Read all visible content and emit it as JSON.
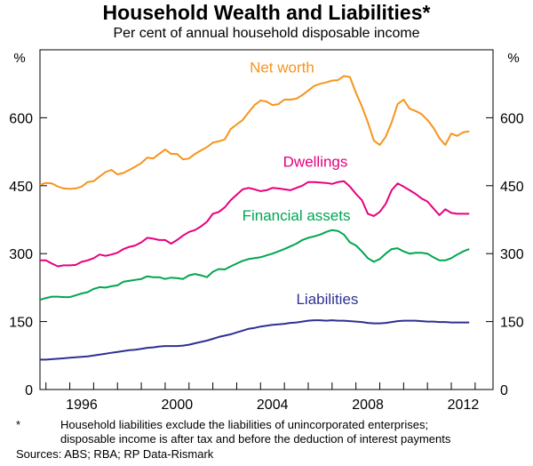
{
  "chart_data": {
    "type": "line",
    "title": "Household Wealth and Liabilities*",
    "subtitle": "Per cent of annual household disposable income",
    "y_unit_left": "%",
    "y_unit_right": "%",
    "ylim": [
      0,
      750
    ],
    "yticks": [
      "0",
      "150",
      "300",
      "450",
      "600"
    ],
    "yticks_right": [
      "0",
      "150",
      "300",
      "450",
      "600"
    ],
    "xlim": [
      1994.75,
      2013.75
    ],
    "xticks": [
      "1996",
      "2000",
      "2004",
      "2008",
      "2012"
    ],
    "grid": false,
    "series": [
      {
        "name": "Net worth",
        "color": "#f7941d",
        "label_pos": [
          1999.0,
          0
        ],
        "points": [
          [
            1994.75,
            452
          ],
          [
            1995.0,
            456
          ],
          [
            1995.25,
            455
          ],
          [
            1995.5,
            448
          ],
          [
            1995.75,
            444
          ],
          [
            1996.0,
            443
          ],
          [
            1996.25,
            444
          ],
          [
            1996.5,
            448
          ],
          [
            1996.75,
            458
          ],
          [
            1997.0,
            460
          ],
          [
            1997.25,
            470
          ],
          [
            1997.5,
            480
          ],
          [
            1997.75,
            485
          ],
          [
            1998.0,
            475
          ],
          [
            1998.25,
            478
          ],
          [
            1998.5,
            485
          ],
          [
            1998.75,
            492
          ],
          [
            1999.0,
            500
          ],
          [
            1999.25,
            512
          ],
          [
            1999.5,
            510
          ],
          [
            1999.75,
            520
          ],
          [
            2000.0,
            530
          ],
          [
            2000.25,
            520
          ],
          [
            2000.5,
            520
          ],
          [
            2000.75,
            508
          ],
          [
            2001.0,
            510
          ],
          [
            2001.25,
            520
          ],
          [
            2001.5,
            528
          ],
          [
            2001.75,
            535
          ],
          [
            2002.0,
            545
          ],
          [
            2002.25,
            548
          ],
          [
            2002.5,
            552
          ],
          [
            2002.75,
            575
          ],
          [
            2003.0,
            585
          ],
          [
            2003.25,
            595
          ],
          [
            2003.5,
            612
          ],
          [
            2003.75,
            628
          ],
          [
            2004.0,
            638
          ],
          [
            2004.25,
            636
          ],
          [
            2004.5,
            628
          ],
          [
            2004.75,
            630
          ],
          [
            2005.0,
            640
          ],
          [
            2005.25,
            640
          ],
          [
            2005.5,
            642
          ],
          [
            2005.75,
            650
          ],
          [
            2006.0,
            660
          ],
          [
            2006.25,
            670
          ],
          [
            2006.5,
            675
          ],
          [
            2006.75,
            678
          ],
          [
            2007.0,
            682
          ],
          [
            2007.25,
            683
          ],
          [
            2007.5,
            692
          ],
          [
            2007.75,
            690
          ],
          [
            2008.0,
            655
          ],
          [
            2008.25,
            625
          ],
          [
            2008.5,
            590
          ],
          [
            2008.75,
            550
          ],
          [
            2009.0,
            540
          ],
          [
            2009.25,
            558
          ],
          [
            2009.5,
            590
          ],
          [
            2009.75,
            630
          ],
          [
            2010.0,
            640
          ],
          [
            2010.25,
            620
          ],
          [
            2010.5,
            615
          ],
          [
            2010.75,
            608
          ],
          [
            2011.0,
            595
          ],
          [
            2011.25,
            578
          ],
          [
            2011.5,
            555
          ],
          [
            2011.75,
            540
          ],
          [
            2012.0,
            565
          ],
          [
            2012.25,
            560
          ],
          [
            2012.5,
            568
          ],
          [
            2012.75,
            570
          ]
        ]
      },
      {
        "name": "Dwellings",
        "color": "#e6007e",
        "points": [
          [
            1994.75,
            285
          ],
          [
            1995.0,
            285
          ],
          [
            1995.25,
            278
          ],
          [
            1995.5,
            272
          ],
          [
            1995.75,
            274
          ],
          [
            1996.0,
            274
          ],
          [
            1996.25,
            275
          ],
          [
            1996.5,
            282
          ],
          [
            1996.75,
            285
          ],
          [
            1997.0,
            290
          ],
          [
            1997.25,
            298
          ],
          [
            1997.5,
            295
          ],
          [
            1997.75,
            298
          ],
          [
            1998.0,
            302
          ],
          [
            1998.25,
            310
          ],
          [
            1998.5,
            315
          ],
          [
            1998.75,
            318
          ],
          [
            1999.0,
            325
          ],
          [
            1999.25,
            335
          ],
          [
            1999.5,
            333
          ],
          [
            1999.75,
            330
          ],
          [
            2000.0,
            330
          ],
          [
            2000.25,
            322
          ],
          [
            2000.5,
            330
          ],
          [
            2000.75,
            340
          ],
          [
            2001.0,
            348
          ],
          [
            2001.25,
            352
          ],
          [
            2001.5,
            360
          ],
          [
            2001.75,
            370
          ],
          [
            2002.0,
            388
          ],
          [
            2002.25,
            392
          ],
          [
            2002.5,
            402
          ],
          [
            2002.75,
            418
          ],
          [
            2003.0,
            430
          ],
          [
            2003.25,
            442
          ],
          [
            2003.5,
            445
          ],
          [
            2003.75,
            442
          ],
          [
            2004.0,
            438
          ],
          [
            2004.25,
            440
          ],
          [
            2004.5,
            445
          ],
          [
            2004.75,
            444
          ],
          [
            2005.0,
            442
          ],
          [
            2005.25,
            440
          ],
          [
            2005.5,
            445
          ],
          [
            2005.75,
            450
          ],
          [
            2006.0,
            458
          ],
          [
            2006.25,
            458
          ],
          [
            2006.5,
            457
          ],
          [
            2006.75,
            456
          ],
          [
            2007.0,
            454
          ],
          [
            2007.25,
            458
          ],
          [
            2007.5,
            460
          ],
          [
            2007.75,
            448
          ],
          [
            2008.0,
            432
          ],
          [
            2008.25,
            418
          ],
          [
            2008.5,
            388
          ],
          [
            2008.75,
            383
          ],
          [
            2009.0,
            392
          ],
          [
            2009.25,
            410
          ],
          [
            2009.5,
            440
          ],
          [
            2009.75,
            455
          ],
          [
            2010.0,
            448
          ],
          [
            2010.25,
            440
          ],
          [
            2010.5,
            432
          ],
          [
            2010.75,
            422
          ],
          [
            2011.0,
            415
          ],
          [
            2011.25,
            400
          ],
          [
            2011.5,
            385
          ],
          [
            2011.75,
            398
          ],
          [
            2012.0,
            390
          ],
          [
            2012.25,
            388
          ],
          [
            2012.5,
            388
          ],
          [
            2012.75,
            388
          ]
        ]
      },
      {
        "name": "Financial assets",
        "color": "#00a651",
        "points": [
          [
            1994.75,
            198
          ],
          [
            1995.0,
            202
          ],
          [
            1995.25,
            205
          ],
          [
            1995.5,
            205
          ],
          [
            1995.75,
            204
          ],
          [
            1996.0,
            204
          ],
          [
            1996.25,
            208
          ],
          [
            1996.5,
            212
          ],
          [
            1996.75,
            215
          ],
          [
            1997.0,
            222
          ],
          [
            1997.25,
            226
          ],
          [
            1997.5,
            225
          ],
          [
            1997.75,
            228
          ],
          [
            1998.0,
            230
          ],
          [
            1998.25,
            238
          ],
          [
            1998.5,
            240
          ],
          [
            1998.75,
            242
          ],
          [
            1999.0,
            244
          ],
          [
            1999.25,
            250
          ],
          [
            1999.5,
            248
          ],
          [
            1999.75,
            248
          ],
          [
            2000.0,
            244
          ],
          [
            2000.25,
            247
          ],
          [
            2000.5,
            246
          ],
          [
            2000.75,
            244
          ],
          [
            2001.0,
            252
          ],
          [
            2001.25,
            255
          ],
          [
            2001.5,
            252
          ],
          [
            2001.75,
            248
          ],
          [
            2002.0,
            260
          ],
          [
            2002.25,
            266
          ],
          [
            2002.5,
            265
          ],
          [
            2002.75,
            272
          ],
          [
            2003.0,
            278
          ],
          [
            2003.25,
            284
          ],
          [
            2003.5,
            288
          ],
          [
            2003.75,
            290
          ],
          [
            2004.0,
            292
          ],
          [
            2004.25,
            296
          ],
          [
            2004.5,
            300
          ],
          [
            2004.75,
            305
          ],
          [
            2005.0,
            310
          ],
          [
            2005.25,
            316
          ],
          [
            2005.5,
            322
          ],
          [
            2005.75,
            330
          ],
          [
            2006.0,
            335
          ],
          [
            2006.25,
            338
          ],
          [
            2006.5,
            342
          ],
          [
            2006.75,
            348
          ],
          [
            2007.0,
            352
          ],
          [
            2007.25,
            350
          ],
          [
            2007.5,
            342
          ],
          [
            2007.75,
            325
          ],
          [
            2008.0,
            318
          ],
          [
            2008.25,
            305
          ],
          [
            2008.5,
            290
          ],
          [
            2008.75,
            282
          ],
          [
            2009.0,
            288
          ],
          [
            2009.25,
            300
          ],
          [
            2009.5,
            310
          ],
          [
            2009.75,
            312
          ],
          [
            2010.0,
            305
          ],
          [
            2010.25,
            300
          ],
          [
            2010.5,
            302
          ],
          [
            2010.75,
            302
          ],
          [
            2011.0,
            300
          ],
          [
            2011.25,
            292
          ],
          [
            2011.5,
            285
          ],
          [
            2011.75,
            285
          ],
          [
            2012.0,
            290
          ],
          [
            2012.25,
            298
          ],
          [
            2012.5,
            305
          ],
          [
            2012.75,
            310
          ]
        ]
      },
      {
        "name": "Liabilities",
        "color": "#2e3192",
        "points": [
          [
            1994.75,
            66
          ],
          [
            1995.0,
            66
          ],
          [
            1995.25,
            67
          ],
          [
            1995.5,
            68
          ],
          [
            1995.75,
            69
          ],
          [
            1996.0,
            70
          ],
          [
            1996.25,
            71
          ],
          [
            1996.5,
            72
          ],
          [
            1996.75,
            73
          ],
          [
            1997.0,
            75
          ],
          [
            1997.25,
            77
          ],
          [
            1997.5,
            79
          ],
          [
            1997.75,
            81
          ],
          [
            1998.0,
            83
          ],
          [
            1998.25,
            85
          ],
          [
            1998.5,
            87
          ],
          [
            1998.75,
            88
          ],
          [
            1999.0,
            90
          ],
          [
            1999.25,
            92
          ],
          [
            1999.5,
            93
          ],
          [
            1999.75,
            95
          ],
          [
            2000.0,
            96
          ],
          [
            2000.25,
            96
          ],
          [
            2000.5,
            96
          ],
          [
            2000.75,
            97
          ],
          [
            2001.0,
            99
          ],
          [
            2001.25,
            102
          ],
          [
            2001.5,
            105
          ],
          [
            2001.75,
            108
          ],
          [
            2002.0,
            112
          ],
          [
            2002.25,
            116
          ],
          [
            2002.5,
            119
          ],
          [
            2002.75,
            122
          ],
          [
            2003.0,
            126
          ],
          [
            2003.25,
            130
          ],
          [
            2003.5,
            134
          ],
          [
            2003.75,
            136
          ],
          [
            2004.0,
            139
          ],
          [
            2004.25,
            141
          ],
          [
            2004.5,
            143
          ],
          [
            2004.75,
            144
          ],
          [
            2005.0,
            145
          ],
          [
            2005.25,
            147
          ],
          [
            2005.5,
            148
          ],
          [
            2005.75,
            150
          ],
          [
            2006.0,
            152
          ],
          [
            2006.25,
            153
          ],
          [
            2006.5,
            153
          ],
          [
            2006.75,
            152
          ],
          [
            2007.0,
            153
          ],
          [
            2007.25,
            152
          ],
          [
            2007.5,
            152
          ],
          [
            2007.75,
            151
          ],
          [
            2008.0,
            150
          ],
          [
            2008.25,
            149
          ],
          [
            2008.5,
            147
          ],
          [
            2008.75,
            146
          ],
          [
            2009.0,
            146
          ],
          [
            2009.25,
            147
          ],
          [
            2009.5,
            149
          ],
          [
            2009.75,
            151
          ],
          [
            2010.0,
            152
          ],
          [
            2010.25,
            152
          ],
          [
            2010.5,
            152
          ],
          [
            2010.75,
            151
          ],
          [
            2011.0,
            150
          ],
          [
            2011.25,
            150
          ],
          [
            2011.5,
            149
          ],
          [
            2011.75,
            149
          ],
          [
            2012.0,
            148
          ],
          [
            2012.25,
            148
          ],
          [
            2012.5,
            148
          ],
          [
            2012.75,
            148
          ]
        ]
      }
    ]
  },
  "footnotes": {
    "star": "*",
    "line1": "Household liabilities exclude the liabilities of unincorporated enterprises;",
    "line2": "disposable income is after tax and before the deduction of interest payments",
    "sources": "Sources: ABS; RBA; RP Data-Rismark"
  }
}
